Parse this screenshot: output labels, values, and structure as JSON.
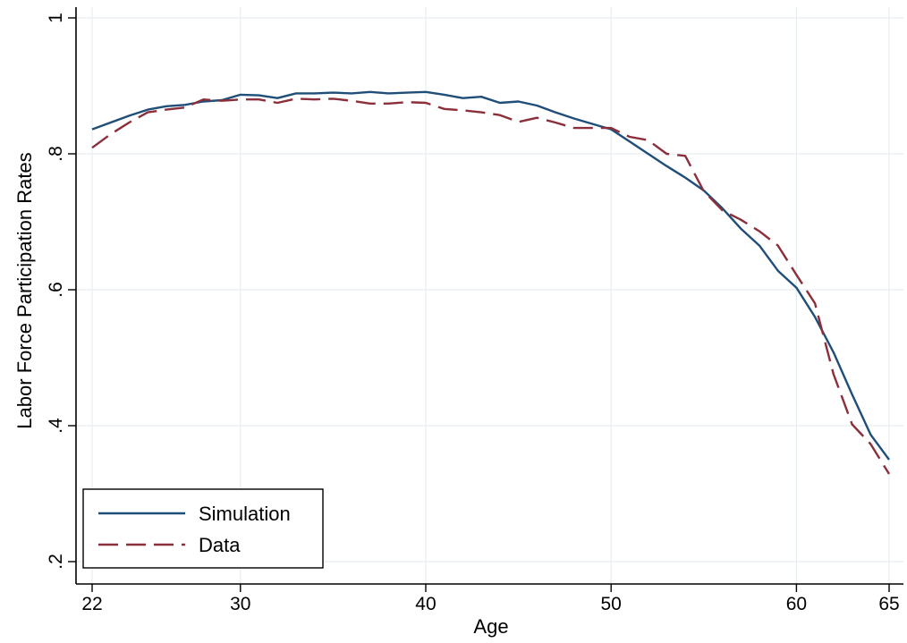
{
  "chart_data": {
    "type": "line",
    "title": "",
    "xlabel": "Age",
    "ylabel": "Labor Force Participation Rates",
    "xlim": [
      22,
      65
    ],
    "ylim": [
      0.2,
      1.0
    ],
    "x_ticks": [
      22,
      30,
      40,
      50,
      60,
      65
    ],
    "x_tick_labels": [
      "22",
      "30",
      "40",
      "50",
      "60",
      "65"
    ],
    "y_ticks": [
      0.2,
      0.4,
      0.6,
      0.8,
      1.0
    ],
    "y_tick_labels": [
      ".2",
      ".4",
      ".6",
      ".8",
      "1"
    ],
    "grid": true,
    "legend_position": "bottom-left",
    "x": [
      22,
      23,
      24,
      25,
      26,
      27,
      28,
      29,
      30,
      31,
      32,
      33,
      34,
      35,
      36,
      37,
      38,
      39,
      40,
      41,
      42,
      43,
      44,
      45,
      46,
      47,
      48,
      49,
      50,
      51,
      52,
      53,
      54,
      55,
      56,
      57,
      58,
      59,
      60,
      61,
      62,
      63,
      64,
      65
    ],
    "series": [
      {
        "name": "Simulation",
        "color": "#1f4e79",
        "dash": "solid",
        "values": [
          0.836,
          0.846,
          0.856,
          0.865,
          0.87,
          0.872,
          0.877,
          0.879,
          0.887,
          0.886,
          0.882,
          0.889,
          0.889,
          0.89,
          0.889,
          0.891,
          0.889,
          0.89,
          0.891,
          0.887,
          0.882,
          0.884,
          0.875,
          0.877,
          0.871,
          0.861,
          0.852,
          0.844,
          0.836,
          0.818,
          0.8,
          0.782,
          0.765,
          0.746,
          0.72,
          0.69,
          0.665,
          0.628,
          0.603,
          0.56,
          0.508,
          0.446,
          0.387,
          0.35
        ]
      },
      {
        "name": "Data",
        "color": "#8b2f3a",
        "dash": "dashed",
        "values": [
          0.809,
          0.829,
          0.846,
          0.861,
          0.865,
          0.868,
          0.88,
          0.878,
          0.88,
          0.88,
          0.875,
          0.881,
          0.88,
          0.881,
          0.878,
          0.874,
          0.874,
          0.876,
          0.875,
          0.866,
          0.864,
          0.861,
          0.857,
          0.847,
          0.853,
          0.846,
          0.838,
          0.838,
          0.838,
          0.825,
          0.82,
          0.8,
          0.797,
          0.745,
          0.717,
          0.703,
          0.686,
          0.665,
          0.622,
          0.58,
          0.476,
          0.402,
          0.373,
          0.329
        ]
      }
    ]
  }
}
